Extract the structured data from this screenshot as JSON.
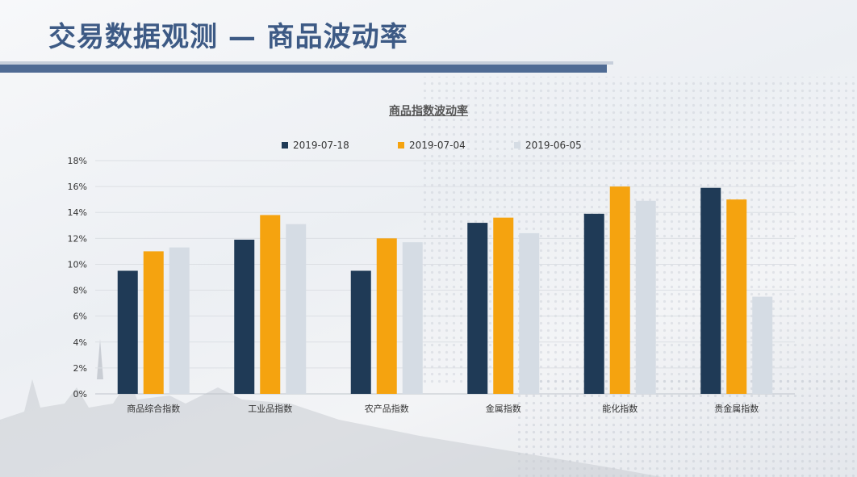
{
  "slide": {
    "title": "交易数据观测 — 商品波动率"
  },
  "colors": {
    "title": "#3d5a85",
    "bar": "#4f6b94",
    "series": [
      "#1f3a56",
      "#f5a30f",
      "#d5dce4"
    ]
  },
  "chart_data": {
    "type": "bar",
    "title": "商品指数波动率",
    "xlabel": "",
    "ylabel": "",
    "ylim": [
      0,
      18
    ],
    "yticks": [
      "0%",
      "2%",
      "4%",
      "6%",
      "8%",
      "10%",
      "12%",
      "14%",
      "16%",
      "18%"
    ],
    "legend_position": "top",
    "grid": true,
    "categories": [
      "商品综合指数",
      "工业品指数",
      "农产品指数",
      "金属指数",
      "能化指数",
      "贵金属指数"
    ],
    "series": [
      {
        "name": "2019-07-18",
        "color": "#1f3a56",
        "values": [
          9.5,
          11.9,
          9.5,
          13.2,
          13.9,
          15.9
        ]
      },
      {
        "name": "2019-07-04",
        "color": "#f5a30f",
        "values": [
          11.0,
          13.8,
          12.0,
          13.6,
          16.0,
          15.0
        ]
      },
      {
        "name": "2019-06-05",
        "color": "#d5dce4",
        "values": [
          11.3,
          13.1,
          11.7,
          12.4,
          14.9,
          7.5
        ]
      }
    ]
  }
}
